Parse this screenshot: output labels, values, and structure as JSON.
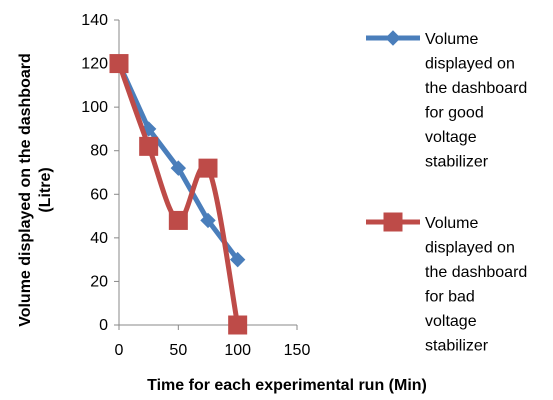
{
  "chart_data": {
    "type": "line",
    "title": "",
    "xlabel": "Time for each experimental run (Min)",
    "ylabel_lines": [
      "Volume displayed on the dashboard",
      "(Litre)"
    ],
    "xlim": [
      0,
      150
    ],
    "ylim": [
      0,
      140
    ],
    "xticks": [
      "0",
      "50",
      "100",
      "150"
    ],
    "yticks": [
      "0",
      "20",
      "40",
      "60",
      "80",
      "100",
      "120",
      "140"
    ],
    "grid": false,
    "legend_position": "right",
    "series": [
      {
        "name_lines": [
          "Volume",
          "displayed on",
          "the dashboard",
          "for good",
          "voltage",
          "stabilizer"
        ],
        "color": "#4A7EBB",
        "marker": "diamond",
        "smooth": false,
        "x": [
          0,
          25,
          50,
          75,
          100
        ],
        "y": [
          120,
          90,
          72,
          48,
          30
        ]
      },
      {
        "name_lines": [
          "Volume",
          "displayed on",
          "the dashboard",
          "for bad",
          "voltage",
          "stabilizer"
        ],
        "color": "#BE4B48",
        "marker": "square",
        "smooth": true,
        "x": [
          0,
          25,
          50,
          75,
          100
        ],
        "y": [
          120,
          82,
          48,
          72,
          0
        ]
      }
    ]
  }
}
